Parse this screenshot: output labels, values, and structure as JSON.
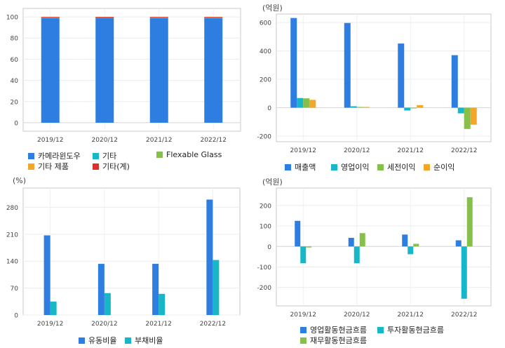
{
  "chart_data": [
    {
      "type": "bar",
      "stacked": true,
      "unit": "",
      "categories": [
        "2019/12",
        "2020/12",
        "2021/12",
        "2022/12"
      ],
      "ylim": [
        -8,
        108
      ],
      "yticks": [
        0,
        20,
        40,
        60,
        80,
        100
      ],
      "grid": true,
      "legend_position": "bottom",
      "series": [
        {
          "name": "카메라윈도우",
          "color": "#2e7de1",
          "values": [
            98.8,
            99.2,
            98.9,
            98.8
          ]
        },
        {
          "name": "기타",
          "color": "#17b7c8",
          "values": [
            0.4,
            0.2,
            0.3,
            0.3
          ]
        },
        {
          "name": "Flexable Glass",
          "color": "#86c04a",
          "values": [
            0.6,
            0.4,
            0.6,
            0.7
          ]
        },
        {
          "name": "기타 제품",
          "color": "#f4a62a",
          "values": [
            0.1,
            0.1,
            0.1,
            0.1
          ]
        },
        {
          "name": "기타(계)",
          "color": "#d8322b",
          "values": [
            0.1,
            0.1,
            0.1,
            0.1
          ]
        }
      ]
    },
    {
      "type": "bar",
      "unit": "(억원)",
      "categories": [
        "2019/12",
        "2020/12",
        "2021/12",
        "2022/12"
      ],
      "ylim": [
        -240,
        660
      ],
      "yticks": [
        -200,
        0,
        200,
        400,
        600
      ],
      "grid": true,
      "legend_position": "bottom",
      "series": [
        {
          "name": "매출액",
          "color": "#2e7de1",
          "values": [
            632,
            597,
            452,
            370
          ]
        },
        {
          "name": "영업이익",
          "color": "#17b7c8",
          "values": [
            68,
            10,
            -20,
            -40
          ]
        },
        {
          "name": "세전이익",
          "color": "#86c04a",
          "values": [
            66,
            5,
            -5,
            -150
          ]
        },
        {
          "name": "순이익",
          "color": "#f4a62a",
          "values": [
            55,
            5,
            18,
            -120
          ]
        }
      ]
    },
    {
      "type": "bar",
      "unit": "(%)",
      "categories": [
        "2019/12",
        "2020/12",
        "2021/12",
        "2022/12"
      ],
      "ylim": [
        0,
        330
      ],
      "yticks": [
        0,
        70,
        140,
        210,
        280
      ],
      "grid": true,
      "legend_position": "bottom",
      "series": [
        {
          "name": "유동비율",
          "color": "#2e7de1",
          "values": [
            207,
            133,
            133,
            300
          ]
        },
        {
          "name": "부채비율",
          "color": "#17b7c8",
          "values": [
            35,
            57,
            55,
            143
          ]
        }
      ]
    },
    {
      "type": "bar",
      "unit": "(억원)",
      "categories": [
        "2019/12",
        "2020/12",
        "2021/12",
        "2022/12"
      ],
      "ylim": [
        -290,
        285
      ],
      "yticks": [
        -200,
        -100,
        0,
        100,
        200
      ],
      "grid": true,
      "legend_position": "bottom",
      "series": [
        {
          "name": "영업활동현금흐름",
          "color": "#2e7de1",
          "values": [
            125,
            42,
            58,
            30
          ]
        },
        {
          "name": "투자활동현금흐름",
          "color": "#17b7c8",
          "values": [
            -82,
            -82,
            -38,
            -255
          ]
        },
        {
          "name": "재무활동현금흐름",
          "color": "#86c04a",
          "values": [
            -5,
            65,
            13,
            240
          ]
        }
      ]
    }
  ]
}
